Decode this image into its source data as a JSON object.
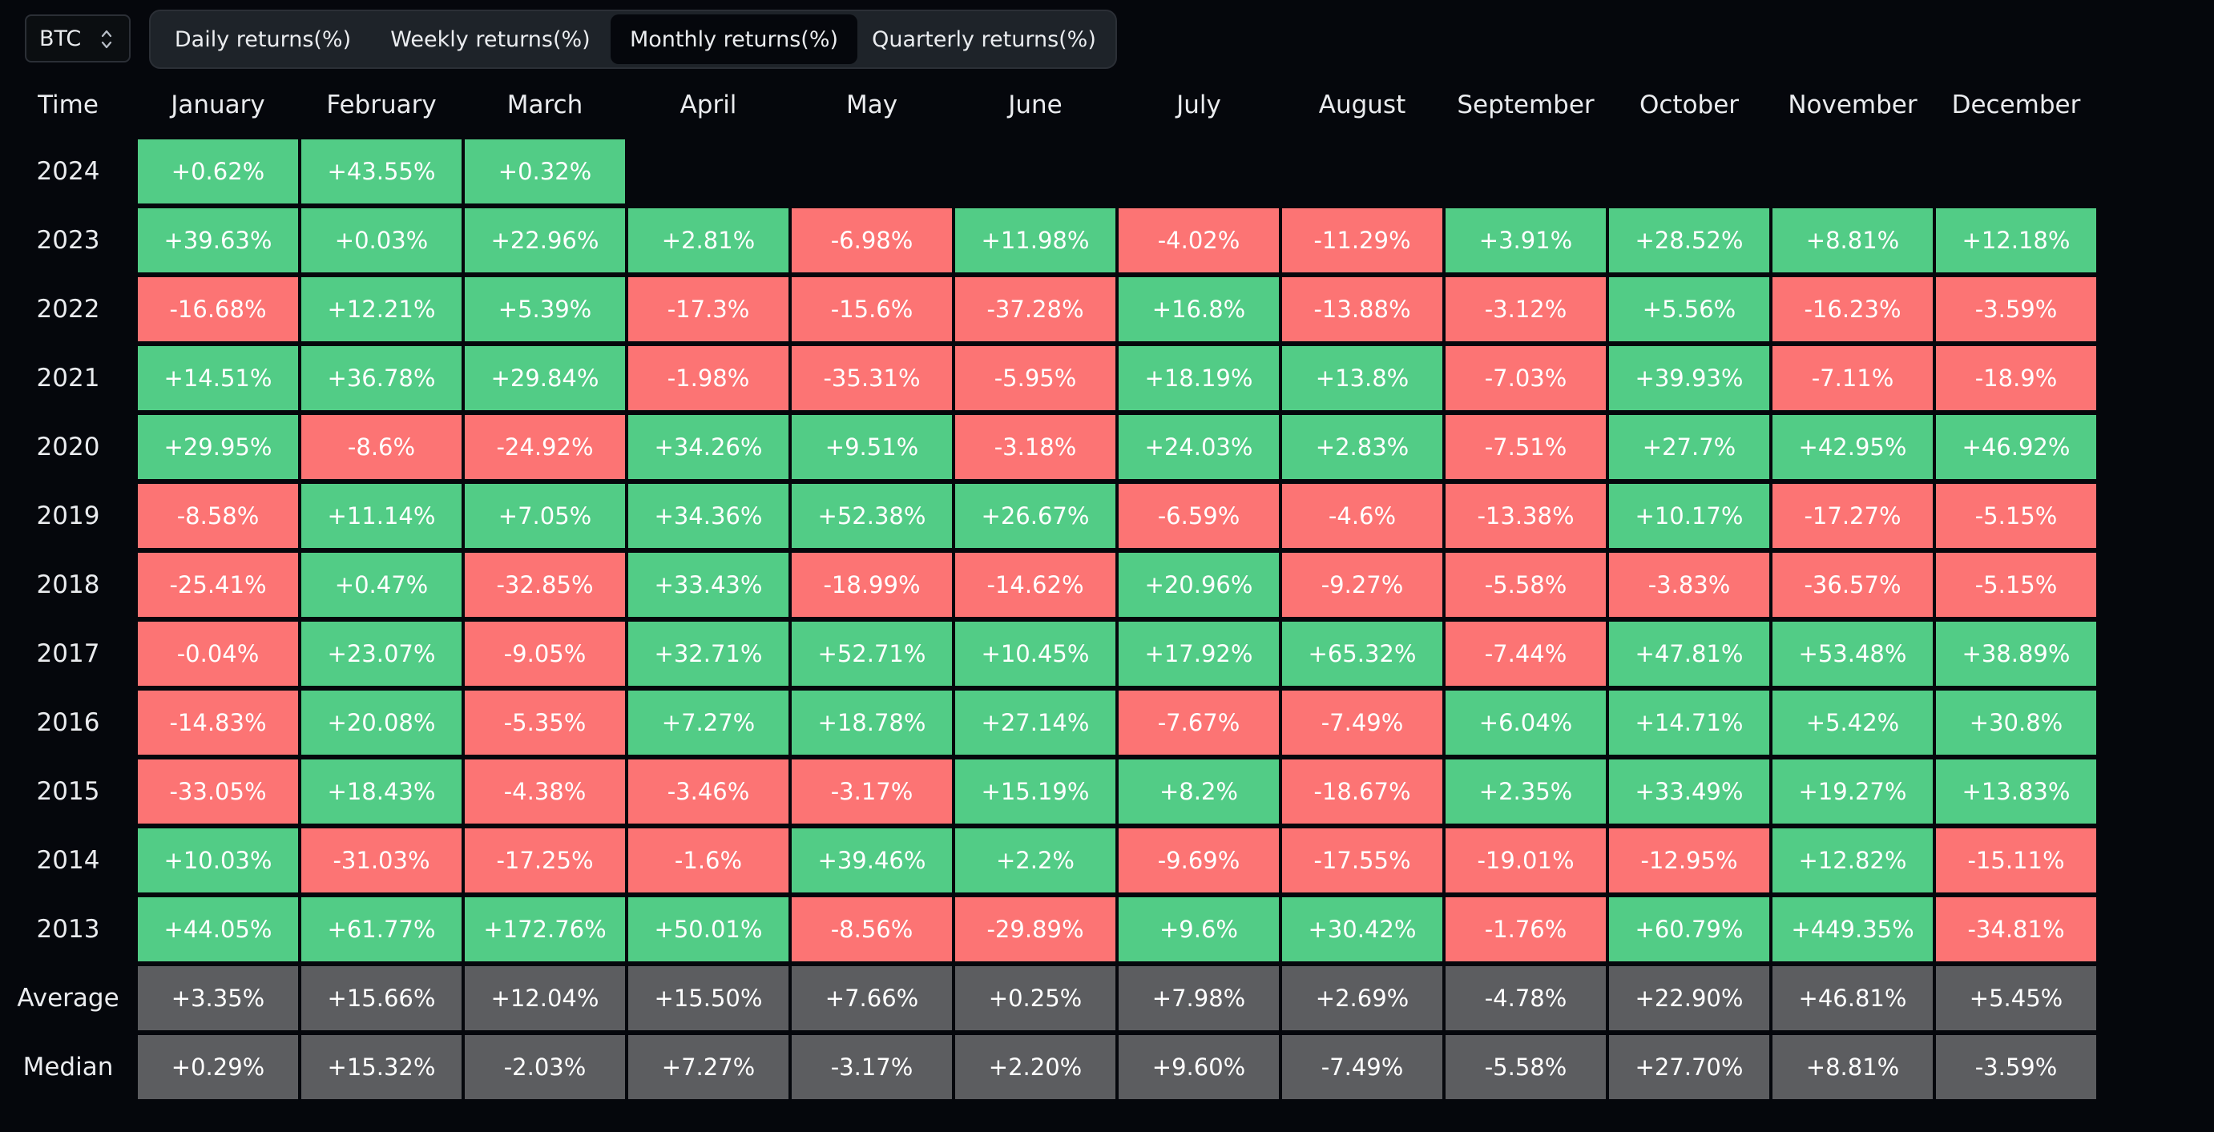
{
  "asset_select": {
    "value": "BTC"
  },
  "tabs": [
    {
      "label": "Daily returns(%)",
      "active": false
    },
    {
      "label": "Weekly returns(%)",
      "active": false
    },
    {
      "label": "Monthly returns(%)",
      "active": true
    },
    {
      "label": "Quarterly returns(%)",
      "active": false
    }
  ],
  "colors": {
    "positive": "#52cc86",
    "negative": "#fc7474",
    "summary": "#5c5d60",
    "background": "#05070c"
  },
  "table": {
    "corner_label": "Time",
    "months": [
      "January",
      "February",
      "March",
      "April",
      "May",
      "June",
      "July",
      "August",
      "September",
      "October",
      "November",
      "December"
    ],
    "rows": [
      {
        "label": "2024",
        "values": [
          "+0.62%",
          "+43.55%",
          "+0.32%"
        ]
      },
      {
        "label": "2023",
        "values": [
          "+39.63%",
          "+0.03%",
          "+22.96%",
          "+2.81%",
          "-6.98%",
          "+11.98%",
          "-4.02%",
          "-11.29%",
          "+3.91%",
          "+28.52%",
          "+8.81%",
          "+12.18%"
        ]
      },
      {
        "label": "2022",
        "values": [
          "-16.68%",
          "+12.21%",
          "+5.39%",
          "-17.3%",
          "-15.6%",
          "-37.28%",
          "+16.8%",
          "-13.88%",
          "-3.12%",
          "+5.56%",
          "-16.23%",
          "-3.59%"
        ]
      },
      {
        "label": "2021",
        "values": [
          "+14.51%",
          "+36.78%",
          "+29.84%",
          "-1.98%",
          "-35.31%",
          "-5.95%",
          "+18.19%",
          "+13.8%",
          "-7.03%",
          "+39.93%",
          "-7.11%",
          "-18.9%"
        ]
      },
      {
        "label": "2020",
        "values": [
          "+29.95%",
          "-8.6%",
          "-24.92%",
          "+34.26%",
          "+9.51%",
          "-3.18%",
          "+24.03%",
          "+2.83%",
          "-7.51%",
          "+27.7%",
          "+42.95%",
          "+46.92%"
        ]
      },
      {
        "label": "2019",
        "values": [
          "-8.58%",
          "+11.14%",
          "+7.05%",
          "+34.36%",
          "+52.38%",
          "+26.67%",
          "-6.59%",
          "-4.6%",
          "-13.38%",
          "+10.17%",
          "-17.27%",
          "-5.15%"
        ]
      },
      {
        "label": "2018",
        "values": [
          "-25.41%",
          "+0.47%",
          "-32.85%",
          "+33.43%",
          "-18.99%",
          "-14.62%",
          "+20.96%",
          "-9.27%",
          "-5.58%",
          "-3.83%",
          "-36.57%",
          "-5.15%"
        ]
      },
      {
        "label": "2017",
        "values": [
          "-0.04%",
          "+23.07%",
          "-9.05%",
          "+32.71%",
          "+52.71%",
          "+10.45%",
          "+17.92%",
          "+65.32%",
          "-7.44%",
          "+47.81%",
          "+53.48%",
          "+38.89%"
        ]
      },
      {
        "label": "2016",
        "values": [
          "-14.83%",
          "+20.08%",
          "-5.35%",
          "+7.27%",
          "+18.78%",
          "+27.14%",
          "-7.67%",
          "-7.49%",
          "+6.04%",
          "+14.71%",
          "+5.42%",
          "+30.8%"
        ]
      },
      {
        "label": "2015",
        "values": [
          "-33.05%",
          "+18.43%",
          "-4.38%",
          "-3.46%",
          "-3.17%",
          "+15.19%",
          "+8.2%",
          "-18.67%",
          "+2.35%",
          "+33.49%",
          "+19.27%",
          "+13.83%"
        ]
      },
      {
        "label": "2014",
        "values": [
          "+10.03%",
          "-31.03%",
          "-17.25%",
          "-1.6%",
          "+39.46%",
          "+2.2%",
          "-9.69%",
          "-17.55%",
          "-19.01%",
          "-12.95%",
          "+12.82%",
          "-15.11%"
        ]
      },
      {
        "label": "2013",
        "values": [
          "+44.05%",
          "+61.77%",
          "+172.76%",
          "+50.01%",
          "-8.56%",
          "-29.89%",
          "+9.6%",
          "+30.42%",
          "-1.76%",
          "+60.79%",
          "+449.35%",
          "-34.81%"
        ]
      }
    ],
    "summary_rows": [
      {
        "label": "Average",
        "values": [
          "+3.35%",
          "+15.66%",
          "+12.04%",
          "+15.50%",
          "+7.66%",
          "+0.25%",
          "+7.98%",
          "+2.69%",
          "-4.78%",
          "+22.90%",
          "+46.81%",
          "+5.45%"
        ]
      },
      {
        "label": "Median",
        "values": [
          "+0.29%",
          "+15.32%",
          "-2.03%",
          "+7.27%",
          "-3.17%",
          "+2.20%",
          "+9.60%",
          "-7.49%",
          "-5.58%",
          "+27.70%",
          "+8.81%",
          "-3.59%"
        ]
      }
    ]
  }
}
